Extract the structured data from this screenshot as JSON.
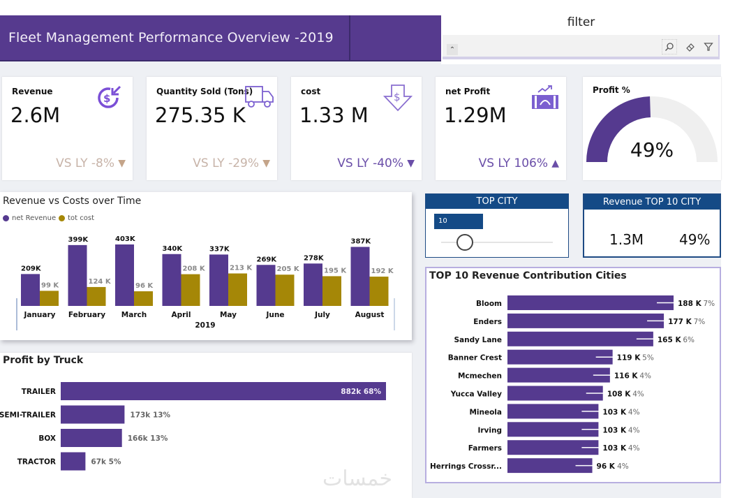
{
  "header": {
    "title": "Fleet Management Performance Overview -2019"
  },
  "filter": {
    "title": "filter",
    "buttons": {
      "expand": "collapse-expand",
      "search": "search",
      "eraser": "clear",
      "funnel": "filter"
    }
  },
  "kpis": [
    {
      "label": "Revenue",
      "value": "2.6M",
      "vs": "VS LY -8%",
      "trend": "down",
      "icon": "revenue-icon",
      "vs_color": "#c7b3a8",
      "arrow_color": "#c4a489"
    },
    {
      "label": "Quantity Sold (Tons)",
      "value": "275.35 K",
      "vs": "VS LY -29%",
      "trend": "down",
      "icon": "truck-icon",
      "vs_color": "#c7b3a8",
      "arrow_color": "#c4a489"
    },
    {
      "label": "cost",
      "value": "1.33 M",
      "vs": "VS LY -40%",
      "trend": "down",
      "icon": "dollar-down-arrow-icon",
      "vs_color": "#6a4ea8",
      "arrow_color": "#6a4ea8"
    },
    {
      "label": "net Profit",
      "value": "1.29M",
      "vs": "VS LY 106%",
      "trend": "up",
      "icon": "profit-growth-icon",
      "vs_color": "#6a4ea8",
      "arrow_color": "#6a4ea8"
    }
  ],
  "profit_gauge": {
    "label": "Profit %",
    "value_text": "49%",
    "value": 0.49
  },
  "colors": {
    "purple": "#553a8f",
    "gold": "#a58707",
    "navy": "#144a86",
    "gauge_bg": "#efefef"
  },
  "top_city_slicer": {
    "title": "TOP CITY",
    "value": "10"
  },
  "revenue_top10": {
    "title": "Revenue TOP 10 CITY",
    "amount": "1.3M",
    "percent": "49%"
  },
  "watermark": "خمسات",
  "chart_data": [
    {
      "type": "bar",
      "title": "Revenue vs Costs over Time",
      "xlabel": "2019",
      "ylabel": "",
      "categories": [
        "January",
        "February",
        "March",
        "April",
        "May",
        "June",
        "July",
        "August"
      ],
      "series": [
        {
          "name": "net Revenue",
          "color": "#553a8f",
          "values": [
            209,
            399,
            403,
            340,
            337,
            269,
            278,
            387
          ],
          "labels": [
            "209K",
            "399K",
            "403K",
            "340K",
            "337K",
            "269K",
            "278K",
            "387K"
          ]
        },
        {
          "name": "tot cost",
          "color": "#a58707",
          "values": [
            99,
            124,
            96,
            208,
            213,
            205,
            195,
            192
          ],
          "labels": [
            "99 K",
            "124 K",
            "96 K",
            "208 K",
            "213 K",
            "205 K",
            "195 K",
            "192 K"
          ]
        }
      ],
      "units": "K",
      "legend": "top-left",
      "grid": false
    },
    {
      "type": "bar",
      "orientation": "horizontal",
      "title": "TOP 10 Revenue Contribution Cities",
      "categories": [
        "Bloom",
        "Enders",
        "Sandy Lane",
        "Banner Crest",
        "Mcmechen",
        "Yucca Valley",
        "Mineola",
        "Irving",
        "Farmers",
        "Herrings Crossr..."
      ],
      "values": [
        188,
        177,
        165,
        119,
        116,
        108,
        103,
        103,
        103,
        96
      ],
      "value_labels": [
        "188 K",
        "177 K",
        "165 K",
        "119 K",
        "116 K",
        "108 K",
        "103 K",
        "103 K",
        "103 K",
        "96 K"
      ],
      "percent_labels": [
        "7%",
        "7%",
        "6%",
        "5%",
        "4%",
        "4%",
        "4%",
        "4%",
        "4%",
        "4%"
      ],
      "units": "K",
      "grid": false
    },
    {
      "type": "bar",
      "orientation": "horizontal",
      "title": "Profit by Truck",
      "categories": [
        "TRAILER",
        "SEMI-TRAILER",
        "BOX",
        "TRACTOR"
      ],
      "values": [
        882,
        173,
        166,
        67
      ],
      "labels": [
        "882k 68%",
        "173k 13%",
        "166k 13%",
        "67k 5%"
      ],
      "units": "k",
      "grid": false
    }
  ]
}
